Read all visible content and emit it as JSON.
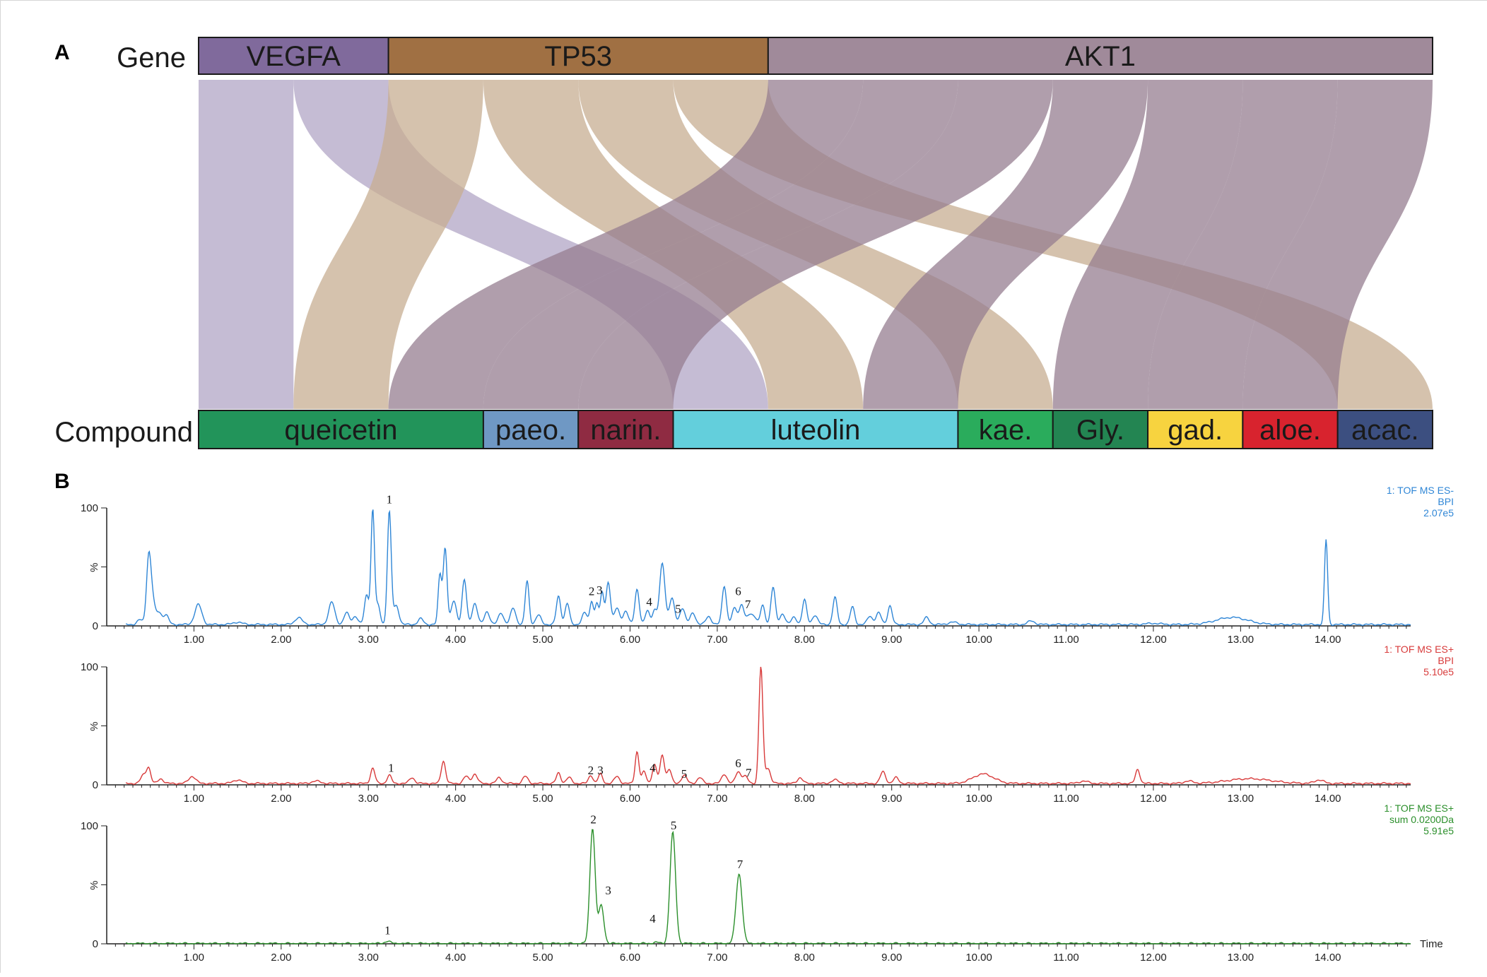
{
  "panels": {
    "a_label": "A",
    "b_label": "B"
  },
  "colors": {
    "VEGFA": "#806a9c",
    "TP53": "#a07043",
    "AKT1": "#a08a9a",
    "ribbon_VEGFA": "#b1a6c6",
    "ribbon_TP53": "#c7ad91",
    "ribbon_AKT1": "#957d90",
    "trace_neg": "#2f86d6",
    "trace_pos": "#d83a3a",
    "trace_sum": "#2b8f2b"
  },
  "chart_data": [
    {
      "type": "sankey",
      "row_labels": {
        "top": "Gene",
        "bottom": "Compound"
      },
      "genes": [
        {
          "id": "VEGFA",
          "label": "VEGFA",
          "weight": 2
        },
        {
          "id": "TP53",
          "label": "TP53",
          "weight": 4
        },
        {
          "id": "AKT1",
          "label": "AKT1",
          "weight": 7
        }
      ],
      "compounds": [
        {
          "id": "queicetin",
          "label": "queicetin",
          "color": "#22945a",
          "weight": 3
        },
        {
          "id": "paeo",
          "label": "paeo.",
          "color": "#6f98c4",
          "weight": 1
        },
        {
          "id": "narin",
          "label": "narin.",
          "color": "#8f2b42",
          "weight": 1
        },
        {
          "id": "luteolin",
          "label": "luteolin",
          "color": "#63cfdc",
          "weight": 3
        },
        {
          "id": "kae",
          "label": "kae.",
          "color": "#2aac5c",
          "weight": 1
        },
        {
          "id": "Gly",
          "label": "Gly.",
          "color": "#238552",
          "weight": 1
        },
        {
          "id": "gad",
          "label": "gad.",
          "color": "#f7d33f",
          "weight": 1
        },
        {
          "id": "aloe",
          "label": "aloe.",
          "color": "#d8232e",
          "weight": 1
        },
        {
          "id": "acac",
          "label": "acac.",
          "color": "#3c4f80",
          "weight": 1
        }
      ],
      "links": [
        {
          "source": "VEGFA",
          "target": "queicetin",
          "value": 1
        },
        {
          "source": "VEGFA",
          "target": "luteolin",
          "value": 1
        },
        {
          "source": "TP53",
          "target": "queicetin",
          "value": 1
        },
        {
          "source": "TP53",
          "target": "luteolin",
          "value": 1
        },
        {
          "source": "TP53",
          "target": "kae",
          "value": 1
        },
        {
          "source": "TP53",
          "target": "acac",
          "value": 1
        },
        {
          "source": "AKT1",
          "target": "queicetin",
          "value": 1
        },
        {
          "source": "AKT1",
          "target": "paeo",
          "value": 1
        },
        {
          "source": "AKT1",
          "target": "narin",
          "value": 1
        },
        {
          "source": "AKT1",
          "target": "luteolin",
          "value": 1
        },
        {
          "source": "AKT1",
          "target": "Gly",
          "value": 1
        },
        {
          "source": "AKT1",
          "target": "gad",
          "value": 1
        },
        {
          "source": "AKT1",
          "target": "aloe",
          "value": 1
        }
      ]
    },
    {
      "type": "line",
      "legend": [
        "1: TOF MS ES-",
        "BPI",
        "2.07e5"
      ],
      "color": "#2f86d6",
      "xlim": [
        0.0,
        14.95
      ],
      "ylim": [
        0,
        100
      ],
      "y_ticks": [
        "0",
        "%",
        "100"
      ],
      "x_ticks": [
        "1.00",
        "2.00",
        "3.00",
        "4.00",
        "5.00",
        "6.00",
        "7.00",
        "8.00",
        "9.00",
        "10.00",
        "11.00",
        "12.00",
        "13.00",
        "14.00"
      ],
      "x_axis_label": "",
      "baseline": 1.2,
      "peaks": [
        [
          0.38,
          4,
          0.03
        ],
        [
          0.48,
          52,
          0.025
        ],
        [
          0.52,
          22,
          0.03
        ],
        [
          0.6,
          10,
          0.03
        ],
        [
          0.68,
          8,
          0.03
        ],
        [
          1.05,
          17,
          0.04
        ],
        [
          1.5,
          2,
          0.05
        ],
        [
          2.2,
          6,
          0.04
        ],
        [
          2.58,
          19,
          0.035
        ],
        [
          2.75,
          10,
          0.03
        ],
        [
          2.85,
          7,
          0.03
        ],
        [
          2.98,
          25,
          0.025
        ],
        [
          3.05,
          97,
          0.02
        ],
        [
          3.11,
          16,
          0.025
        ],
        [
          3.24,
          96,
          0.022
        ],
        [
          3.32,
          16,
          0.03
        ],
        [
          3.6,
          5,
          0.03
        ],
        [
          3.82,
          42,
          0.02
        ],
        [
          3.88,
          65,
          0.022
        ],
        [
          3.98,
          20,
          0.03
        ],
        [
          4.1,
          38,
          0.025
        ],
        [
          4.22,
          18,
          0.03
        ],
        [
          4.36,
          11,
          0.03
        ],
        [
          4.52,
          10,
          0.03
        ],
        [
          4.66,
          14,
          0.03
        ],
        [
          4.82,
          37,
          0.022
        ],
        [
          4.95,
          8,
          0.03
        ],
        [
          5.18,
          24,
          0.025
        ],
        [
          5.28,
          18,
          0.025
        ],
        [
          5.48,
          10,
          0.03
        ],
        [
          5.56,
          20,
          0.02
        ],
        [
          5.62,
          18,
          0.02
        ],
        [
          5.68,
          27,
          0.02
        ],
        [
          5.75,
          36,
          0.025
        ],
        [
          5.85,
          14,
          0.03
        ],
        [
          5.95,
          11,
          0.03
        ],
        [
          6.08,
          30,
          0.025
        ],
        [
          6.2,
          12,
          0.025
        ],
        [
          6.28,
          12,
          0.025
        ],
        [
          6.37,
          52,
          0.03
        ],
        [
          6.48,
          22,
          0.03
        ],
        [
          6.6,
          14,
          0.03
        ],
        [
          6.72,
          10,
          0.03
        ],
        [
          6.9,
          7,
          0.03
        ],
        [
          7.08,
          33,
          0.025
        ],
        [
          7.2,
          14,
          0.03
        ],
        [
          7.28,
          17,
          0.025
        ],
        [
          7.36,
          7,
          0.03
        ],
        [
          7.42,
          7,
          0.03
        ],
        [
          7.52,
          16,
          0.025
        ],
        [
          7.64,
          32,
          0.025
        ],
        [
          7.75,
          9,
          0.03
        ],
        [
          7.88,
          6,
          0.03
        ],
        [
          8.0,
          21,
          0.025
        ],
        [
          8.12,
          8,
          0.03
        ],
        [
          8.35,
          23,
          0.025
        ],
        [
          8.55,
          15,
          0.025
        ],
        [
          8.75,
          7,
          0.03
        ],
        [
          8.85,
          10,
          0.03
        ],
        [
          8.98,
          16,
          0.025
        ],
        [
          9.4,
          6,
          0.03
        ],
        [
          9.7,
          2,
          0.05
        ],
        [
          10.6,
          3,
          0.04
        ],
        [
          12.0,
          1,
          0.08
        ],
        [
          12.9,
          6,
          0.18
        ],
        [
          13.98,
          72,
          0.018
        ]
      ],
      "annotations": [
        {
          "label": "1",
          "x": 3.24,
          "y": 104
        },
        {
          "label": "2",
          "x": 5.56,
          "y": 26
        },
        {
          "label": "3",
          "x": 5.65,
          "y": 27
        },
        {
          "label": "4",
          "x": 6.22,
          "y": 17
        },
        {
          "label": "5",
          "x": 6.55,
          "y": 11
        },
        {
          "label": "6",
          "x": 7.24,
          "y": 26
        },
        {
          "label": "7",
          "x": 7.35,
          "y": 15
        }
      ]
    },
    {
      "type": "line",
      "legend": [
        "1: TOF MS ES+",
        "BPI",
        "5.10e5"
      ],
      "color": "#d83a3a",
      "xlim": [
        0.0,
        14.95
      ],
      "ylim": [
        0,
        100
      ],
      "y_ticks": [
        "0",
        "%",
        "100"
      ],
      "x_ticks": [
        "1.00",
        "2.00",
        "3.00",
        "4.00",
        "5.00",
        "6.00",
        "7.00",
        "8.00",
        "9.00",
        "10.00",
        "11.00",
        "12.00",
        "13.00",
        "14.00"
      ],
      "x_axis_label": "",
      "baseline": 1.2,
      "peaks": [
        [
          0.42,
          7,
          0.03
        ],
        [
          0.48,
          13,
          0.025
        ],
        [
          0.62,
          4,
          0.03
        ],
        [
          0.98,
          6,
          0.04
        ],
        [
          1.5,
          3,
          0.05
        ],
        [
          2.4,
          2,
          0.05
        ],
        [
          3.05,
          13,
          0.025
        ],
        [
          3.24,
          7,
          0.025
        ],
        [
          3.5,
          5,
          0.03
        ],
        [
          3.86,
          19,
          0.025
        ],
        [
          4.12,
          6,
          0.03
        ],
        [
          4.22,
          8,
          0.03
        ],
        [
          4.5,
          5,
          0.03
        ],
        [
          4.8,
          6,
          0.03
        ],
        [
          5.18,
          9,
          0.025
        ],
        [
          5.3,
          5,
          0.03
        ],
        [
          5.55,
          7,
          0.025
        ],
        [
          5.66,
          8,
          0.025
        ],
        [
          5.85,
          6,
          0.03
        ],
        [
          6.08,
          27,
          0.022
        ],
        [
          6.16,
          10,
          0.025
        ],
        [
          6.28,
          16,
          0.025
        ],
        [
          6.37,
          24,
          0.025
        ],
        [
          6.45,
          12,
          0.025
        ],
        [
          6.62,
          7,
          0.03
        ],
        [
          6.8,
          5,
          0.03
        ],
        [
          7.08,
          8,
          0.03
        ],
        [
          7.24,
          10,
          0.03
        ],
        [
          7.32,
          6,
          0.03
        ],
        [
          7.5,
          99,
          0.022
        ],
        [
          7.58,
          13,
          0.03
        ],
        [
          7.95,
          5,
          0.03
        ],
        [
          8.35,
          3,
          0.04
        ],
        [
          8.9,
          10,
          0.03
        ],
        [
          9.05,
          5,
          0.03
        ],
        [
          10.05,
          8,
          0.12
        ],
        [
          11.2,
          2,
          0.05
        ],
        [
          11.82,
          12,
          0.025
        ],
        [
          12.4,
          2,
          0.05
        ],
        [
          13.1,
          4,
          0.25
        ],
        [
          13.9,
          3,
          0.05
        ]
      ],
      "annotations": [
        {
          "label": "1",
          "x": 3.26,
          "y": 11
        },
        {
          "label": "2",
          "x": 5.55,
          "y": 9
        },
        {
          "label": "3",
          "x": 5.66,
          "y": 9
        },
        {
          "label": "4",
          "x": 6.26,
          "y": 11
        },
        {
          "label": "5",
          "x": 6.62,
          "y": 6
        },
        {
          "label": "6",
          "x": 7.24,
          "y": 15
        },
        {
          "label": "7",
          "x": 7.36,
          "y": 7
        }
      ]
    },
    {
      "type": "line",
      "legend": [
        "1: TOF MS ES+",
        "sum  0.0200Da",
        "5.91e5"
      ],
      "color": "#2b8f2b",
      "xlim": [
        0.0,
        14.95
      ],
      "ylim": [
        0,
        100
      ],
      "y_ticks": [
        "0",
        "%",
        "100"
      ],
      "x_ticks": [
        "1.00",
        "2.00",
        "3.00",
        "4.00",
        "5.00",
        "6.00",
        "7.00",
        "8.00",
        "9.00",
        "10.00",
        "11.00",
        "12.00",
        "13.00",
        "14.00"
      ],
      "x_axis_label": "Time",
      "baseline": 0.3,
      "peaks": [
        [
          3.22,
          2,
          0.03
        ],
        [
          5.57,
          98,
          0.03
        ],
        [
          5.67,
          32,
          0.03
        ],
        [
          6.3,
          1,
          0.03
        ],
        [
          6.49,
          94,
          0.032
        ],
        [
          7.25,
          59,
          0.035
        ]
      ],
      "annotations": [
        {
          "label": "1",
          "x": 3.22,
          "y": 8
        },
        {
          "label": "2",
          "x": 5.58,
          "y": 102
        },
        {
          "label": "3",
          "x": 5.75,
          "y": 42
        },
        {
          "label": "4",
          "x": 6.26,
          "y": 18
        },
        {
          "label": "5",
          "x": 6.5,
          "y": 97
        },
        {
          "label": "7",
          "x": 7.26,
          "y": 64
        }
      ]
    }
  ]
}
